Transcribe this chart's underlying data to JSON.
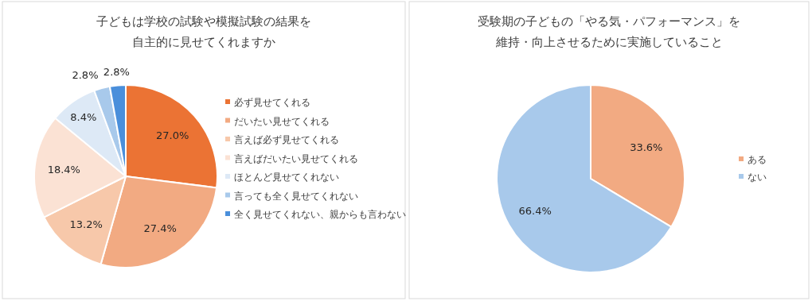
{
  "chart_data": [
    {
      "type": "pie",
      "title": "子どもは学校の試験や模擬試験の結果を自主的に見せてくれますか",
      "categories": [
        "必ず見せてくれる",
        "だいたい見せてくれる",
        "言えば必ず見せてくれる",
        "言えばだいたい見せてくれる",
        "ほとんど見せてくれない",
        "言っても全く見せてくれない",
        "全く見せてくれない、親からも言わない"
      ],
      "values": [
        27.0,
        27.4,
        13.2,
        18.4,
        8.4,
        2.8,
        2.8
      ],
      "value_labels": [
        "27.0%",
        "27.4%",
        "13.2%",
        "18.4%",
        "8.4%",
        "2.8%",
        "2.8%"
      ],
      "colors": [
        "#eb7334",
        "#f2aa82",
        "#f7c8aa",
        "#fbe2d4",
        "#dde9f6",
        "#a8c9eb",
        "#4a8fdb"
      ],
      "legend": "right"
    },
    {
      "type": "pie",
      "title": "受験期の子どもの「やる気・パフォーマンス」を維持・向上させるために実施していること",
      "categories": [
        "ある",
        "ない"
      ],
      "values": [
        33.6,
        66.4
      ],
      "value_labels": [
        "33.6%",
        "66.4%"
      ],
      "colors": [
        "#f2aa82",
        "#a8c9eb"
      ],
      "legend": "right"
    }
  ]
}
